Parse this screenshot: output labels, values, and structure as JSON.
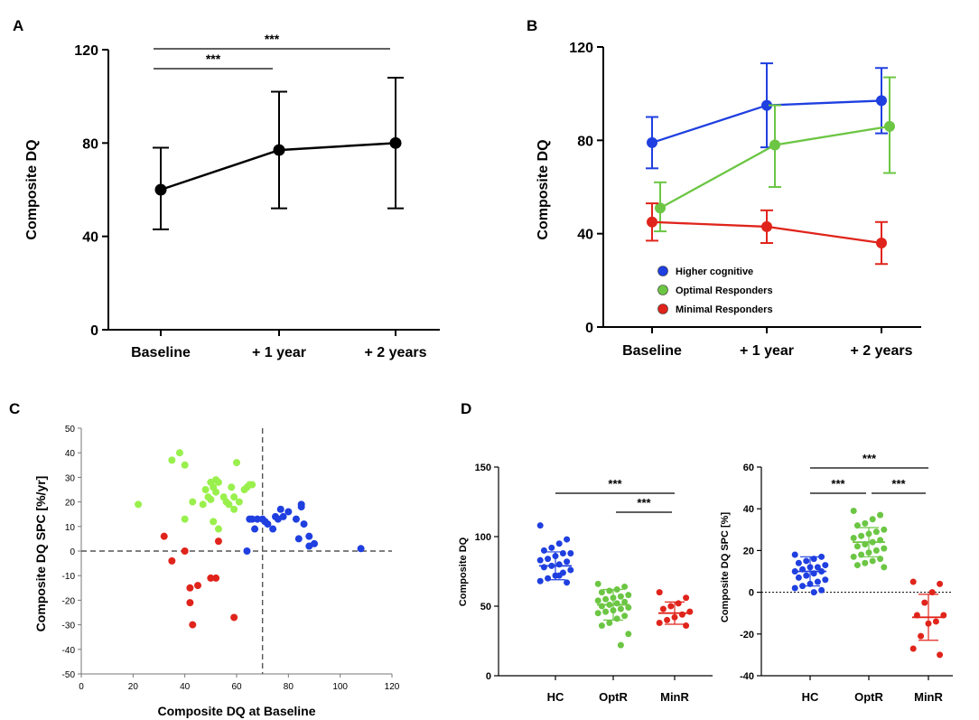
{
  "colors": {
    "axis": "#000000",
    "hc": "#1f3fe0",
    "optr": "#6cc644",
    "minr": "#e0241b",
    "scatter_green": "#99f04c"
  },
  "chart_data": [
    {
      "panel_label": "A",
      "type": "line",
      "ylabel": "Composite DQ",
      "categories": [
        "Baseline",
        "+ 1 year",
        "+ 2 years"
      ],
      "ylim": [
        0,
        120
      ],
      "yticks": [
        "0",
        "40",
        "80",
        "120"
      ],
      "ytick_values": [
        0,
        40,
        80,
        120
      ],
      "series": [
        {
          "name": "Composite DQ",
          "values": [
            60,
            77,
            80
          ],
          "err_low": [
            43,
            52,
            52
          ],
          "err_high": [
            78,
            102,
            108
          ]
        }
      ],
      "significance": [
        {
          "from": 0,
          "to": 1,
          "label": "***"
        },
        {
          "from": 0,
          "to": 2,
          "label": "***"
        }
      ]
    },
    {
      "panel_label": "B",
      "type": "line",
      "ylabel": "Composite DQ",
      "categories": [
        "Baseline",
        "+ 1 year",
        "+ 2 years"
      ],
      "ylim": [
        0,
        120
      ],
      "yticks": [
        "0",
        "40",
        "80",
        "120"
      ],
      "ytick_values": [
        0,
        40,
        80,
        120
      ],
      "legend": [
        "Higher cognitive",
        "Optimal Responders",
        "Minimal Responders"
      ],
      "series": [
        {
          "name": "Higher cognitive",
          "color_key": "hc",
          "values": [
            79,
            95,
            97
          ],
          "err_low": [
            68,
            77,
            83
          ],
          "err_high": [
            90,
            113,
            111
          ]
        },
        {
          "name": "Optimal Responders",
          "color_key": "optr",
          "values": [
            51,
            78,
            86
          ],
          "err_low": [
            41,
            60,
            66
          ],
          "err_high": [
            62,
            95,
            107
          ]
        },
        {
          "name": "Minimal Responders",
          "color_key": "minr",
          "values": [
            45,
            43,
            36
          ],
          "err_low": [
            37,
            36,
            27
          ],
          "err_high": [
            53,
            50,
            45
          ]
        }
      ]
    },
    {
      "panel_label": "C",
      "type": "scatter",
      "xlabel": "Composite DQ at Baseline",
      "ylabel": "Composite DQ SPC [%/yr]",
      "xlim": [
        0,
        120
      ],
      "ylim": [
        -50,
        50
      ],
      "xticks": [
        "0",
        "20",
        "40",
        "60",
        "80",
        "100",
        "120"
      ],
      "xtick_values": [
        0,
        20,
        40,
        60,
        80,
        100,
        120
      ],
      "yticks": [
        "-50",
        "-40",
        "-30",
        "-20",
        "-10",
        "0",
        "10",
        "20",
        "30",
        "40",
        "50"
      ],
      "ytick_values": [
        -50,
        -40,
        -30,
        -20,
        -10,
        0,
        10,
        20,
        30,
        40,
        50
      ],
      "reference_lines": {
        "x": 70,
        "y": 0
      },
      "groups": [
        {
          "name": "Optimal Responders",
          "color_key": "scatter_green",
          "x": [
            22,
            35,
            38,
            40,
            40,
            43,
            47,
            48,
            49,
            50,
            50,
            51,
            52,
            52,
            53,
            55,
            57,
            58,
            59,
            59,
            60,
            61,
            64,
            65,
            66,
            53,
            51,
            56,
            63
          ],
          "y": [
            19,
            37,
            40,
            35,
            13,
            20,
            19,
            25,
            22,
            21,
            28,
            12,
            29,
            24,
            9,
            22,
            19,
            26,
            22,
            17,
            36,
            20,
            26,
            27,
            27,
            28,
            26,
            20,
            25
          ]
        },
        {
          "name": "Higher cognitive",
          "color_key": "hc",
          "x": [
            64,
            65,
            66,
            67,
            68,
            70,
            71,
            72,
            74,
            75,
            76,
            77,
            78,
            80,
            83,
            84,
            85,
            85,
            86,
            88,
            88,
            90,
            108
          ],
          "y": [
            0,
            13,
            13,
            9,
            13,
            13,
            12,
            11,
            9,
            14,
            13,
            17,
            14,
            16,
            13,
            5,
            19,
            18,
            11,
            6,
            2,
            3,
            1
          ]
        },
        {
          "name": "Minimal Responders",
          "color_key": "minr",
          "x": [
            32,
            35,
            40,
            42,
            42,
            43,
            45,
            50,
            52,
            53,
            59
          ],
          "y": [
            6,
            -4,
            0,
            -15,
            -21,
            -30,
            -14,
            -11,
            -11,
            4,
            -27
          ]
        }
      ]
    },
    {
      "panel_label": "D",
      "type": "scatter",
      "ylabel": "Composite DQ",
      "categories": [
        "HC",
        "OptR",
        "MinR"
      ],
      "ylim": [
        0,
        150
      ],
      "yticks": [
        "0",
        "50",
        "100",
        "150"
      ],
      "ytick_values": [
        0,
        50,
        100,
        150
      ],
      "groups": [
        {
          "name": "HC",
          "color_key": "hc",
          "mean": 79,
          "sd": 10,
          "values": [
            108,
            98,
            95,
            92,
            90,
            88,
            88,
            86,
            84,
            83,
            82,
            80,
            79,
            78,
            76,
            74,
            72,
            70,
            68,
            67,
            72
          ]
        },
        {
          "name": "OptR",
          "color_key": "optr",
          "mean": 51,
          "sd": 11,
          "values": [
            66,
            64,
            62,
            61,
            60,
            58,
            57,
            56,
            55,
            54,
            53,
            52,
            51,
            50,
            49,
            48,
            47,
            46,
            45,
            43,
            41,
            38,
            36,
            30,
            22
          ]
        },
        {
          "name": "MinR",
          "color_key": "minr",
          "mean": 45,
          "sd": 8,
          "values": [
            60,
            56,
            52,
            50,
            48,
            46,
            44,
            42,
            40,
            38,
            36
          ]
        }
      ],
      "significance": [
        {
          "from": 1,
          "to": 2,
          "label": "***",
          "level": "low"
        },
        {
          "from": 0,
          "to": 2,
          "label": "***",
          "level": "high"
        }
      ]
    },
    {
      "panel_label": "",
      "type": "scatter",
      "ylabel": "Composite DQ SPC [%]",
      "categories": [
        "HC",
        "OptR",
        "MinR"
      ],
      "ylim": [
        -40,
        60
      ],
      "yticks": [
        "-40",
        "-20",
        "0",
        "20",
        "40",
        "60"
      ],
      "ytick_values": [
        -40,
        -20,
        0,
        20,
        40,
        60
      ],
      "reference_line": 0,
      "groups": [
        {
          "name": "HC",
          "color_key": "hc",
          "mean": 10,
          "sd": 7,
          "values": [
            18,
            17,
            16,
            15,
            14,
            13,
            12,
            12,
            11,
            10,
            10,
            9,
            8,
            7,
            6,
            5,
            4,
            3,
            2,
            1,
            0
          ]
        },
        {
          "name": "OptR",
          "color_key": "optr",
          "mean": 24,
          "sd": 7,
          "values": [
            39,
            37,
            35,
            33,
            32,
            30,
            29,
            28,
            27,
            26,
            25,
            24,
            23,
            22,
            21,
            20,
            19,
            18,
            17,
            16,
            15,
            14,
            13,
            12
          ]
        },
        {
          "name": "MinR",
          "color_key": "minr",
          "mean": -12,
          "sd": 11,
          "values": [
            5,
            4,
            0,
            -5,
            -11,
            -11,
            -14,
            -15,
            -21,
            -27,
            -30
          ]
        }
      ],
      "significance": [
        {
          "from": 0,
          "to": 1,
          "label": "***",
          "level": "low"
        },
        {
          "from": 1,
          "to": 2,
          "label": "***",
          "level": "low"
        },
        {
          "from": 0,
          "to": 2,
          "label": "***",
          "level": "high"
        }
      ]
    }
  ]
}
